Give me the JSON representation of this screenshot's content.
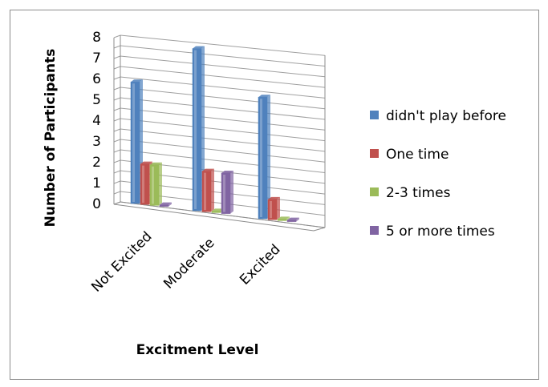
{
  "chart_data": {
    "type": "bar",
    "title": "",
    "xlabel": "Excitment Level",
    "ylabel": "Number of Participants",
    "ylim": [
      0,
      8
    ],
    "yticks": [
      "0",
      "1",
      "2",
      "3",
      "4",
      "5",
      "6",
      "7",
      "8"
    ],
    "grid": true,
    "legend_position": "right",
    "categories": [
      "Not Excited",
      "Moderate",
      "Excited"
    ],
    "series": [
      {
        "name": "didn't play before",
        "color": "#4f81bd",
        "values": [
          6,
          8,
          6
        ]
      },
      {
        "name": "One time",
        "color": "#c0504d",
        "values": [
          2,
          2,
          1
        ]
      },
      {
        "name": "2-3 times",
        "color": "#9bbb59",
        "values": [
          2,
          0,
          0
        ]
      },
      {
        "name": "5 or more times",
        "color": "#8064a2",
        "values": [
          0,
          2,
          0
        ]
      }
    ]
  }
}
